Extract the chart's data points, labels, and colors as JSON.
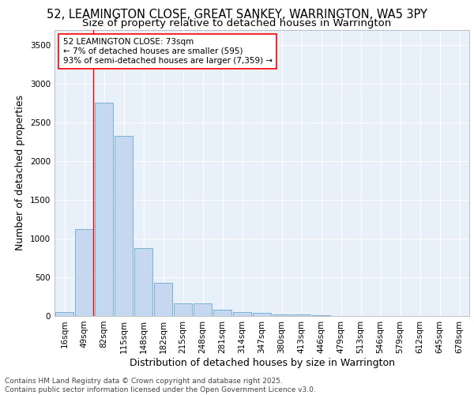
{
  "title_line1": "52, LEAMINGTON CLOSE, GREAT SANKEY, WARRINGTON, WA5 3PY",
  "title_line2": "Size of property relative to detached houses in Warrington",
  "xlabel": "Distribution of detached houses by size in Warrington",
  "ylabel": "Number of detached properties",
  "categories": [
    "16sqm",
    "49sqm",
    "82sqm",
    "115sqm",
    "148sqm",
    "182sqm",
    "215sqm",
    "248sqm",
    "281sqm",
    "314sqm",
    "347sqm",
    "380sqm",
    "413sqm",
    "446sqm",
    "479sqm",
    "513sqm",
    "546sqm",
    "579sqm",
    "612sqm",
    "645sqm",
    "678sqm"
  ],
  "bar_heights": [
    50,
    1120,
    2760,
    2330,
    880,
    430,
    165,
    165,
    85,
    55,
    40,
    25,
    20,
    15,
    0,
    0,
    0,
    0,
    0,
    0,
    0
  ],
  "bar_color": "#c5d8f0",
  "bar_edgecolor": "#7ab0d8",
  "bar_linewidth": 0.7,
  "red_line_x": 1.45,
  "annotation_text": "52 LEAMINGTON CLOSE: 73sqm\n← 7% of detached houses are smaller (595)\n93% of semi-detached houses are larger (7,359) →",
  "ylim": [
    0,
    3700
  ],
  "yticks": [
    0,
    500,
    1000,
    1500,
    2000,
    2500,
    3000,
    3500
  ],
  "background_color": "#e8f0fa",
  "grid_color": "#ffffff",
  "footnote": "Contains HM Land Registry data © Crown copyright and database right 2025.\nContains public sector information licensed under the Open Government Licence v3.0.",
  "title_fontsize": 10.5,
  "subtitle_fontsize": 9.5,
  "ylabel_fontsize": 9,
  "xlabel_fontsize": 9,
  "tick_fontsize": 7.5,
  "ann_fontsize": 7.5,
  "footnote_fontsize": 6.5
}
